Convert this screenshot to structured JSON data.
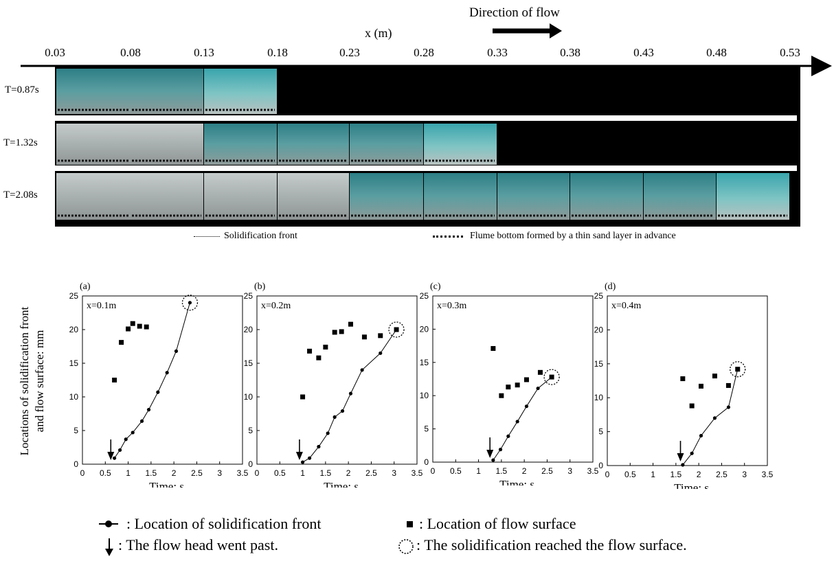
{
  "photo_figure": {
    "direction_label": "Direction of flow",
    "x_axis_label": "x (m)",
    "x_ticks": [
      "0.03",
      "0.08",
      "0.13",
      "0.18",
      "0.23",
      "0.28",
      "0.33",
      "0.38",
      "0.43",
      "0.48",
      "0.53"
    ],
    "rows": [
      {
        "label": "T=0.87s",
        "photos": 3
      },
      {
        "label": "T=1.32s",
        "photos": 6
      },
      {
        "label": "T=2.08s",
        "photos": 10
      }
    ],
    "legend": {
      "solidification_front": "Solidification front",
      "flume_bottom": "Flume bottom formed by a thin sand layer in advance"
    }
  },
  "y_axis_label": {
    "line1": "Locations of solidification front",
    "line2": "and flow surface: mm"
  },
  "chart_data": [
    {
      "type": "scatter",
      "panel": "(a)",
      "annotation": "x=0.1m",
      "xlabel": "Time: s",
      "xlim": [
        0,
        3.5
      ],
      "ylim": [
        0,
        25
      ],
      "xticks": [
        "0",
        "0.5",
        "1",
        "1.5",
        "2",
        "2.5",
        "3",
        "3.5"
      ],
      "yticks": [
        "0",
        "5",
        "10",
        "15",
        "20",
        "25"
      ],
      "series": [
        {
          "marker": "circle-line",
          "x": [
            0.7,
            0.82,
            0.95,
            1.1,
            1.3,
            1.45,
            1.65,
            1.85,
            2.05,
            2.35
          ],
          "y": [
            0.9,
            2.1,
            3.7,
            4.7,
            6.4,
            8.1,
            10.7,
            13.6,
            16.8,
            24
          ]
        },
        {
          "marker": "square",
          "x": [
            0.7,
            0.85,
            1.0,
            1.1,
            1.25,
            1.4
          ],
          "y": [
            12.5,
            18.1,
            20.1,
            20.9,
            20.5,
            20.4
          ]
        }
      ],
      "flow_head_time": 0.62,
      "reached_surface": [
        2.35,
        24
      ]
    },
    {
      "type": "scatter",
      "panel": "(b)",
      "annotation": "x=0.2m",
      "xlabel": "Time: s",
      "xlim": [
        0,
        3.5
      ],
      "ylim": [
        0,
        25
      ],
      "xticks": [
        "0",
        "0.5",
        "1",
        "1.5",
        "2",
        "2.5",
        "3",
        "3.5"
      ],
      "yticks": [
        "0",
        "5",
        "10",
        "15",
        "20",
        "25"
      ],
      "series": [
        {
          "marker": "circle-line",
          "x": [
            1.0,
            1.15,
            1.35,
            1.55,
            1.7,
            1.87,
            2.05,
            2.3,
            2.7,
            3.05
          ],
          "y": [
            0.3,
            0.9,
            2.6,
            4.6,
            7.0,
            7.9,
            10.5,
            14.0,
            16.5,
            20.0
          ]
        },
        {
          "marker": "square",
          "x": [
            1.0,
            1.15,
            1.35,
            1.5,
            1.7,
            1.85,
            2.05,
            2.35,
            2.7,
            3.05
          ],
          "y": [
            10.0,
            16.8,
            15.8,
            17.4,
            19.6,
            19.7,
            20.8,
            18.9,
            19.1,
            20.0
          ]
        }
      ],
      "flow_head_time": 0.93,
      "reached_surface": [
        3.05,
        20.0
      ]
    },
    {
      "type": "scatter",
      "panel": "(c)",
      "annotation": "x=0.3m",
      "xlabel": "Time: s",
      "xlim": [
        0,
        3.5
      ],
      "ylim": [
        0,
        25
      ],
      "xticks": [
        "0",
        "0.5",
        "1",
        "1.5",
        "2",
        "2.5",
        "3",
        "3.5"
      ],
      "yticks": [
        "0",
        "5",
        "10",
        "15",
        "20",
        "25"
      ],
      "series": [
        {
          "marker": "circle-line",
          "x": [
            1.32,
            1.48,
            1.65,
            1.85,
            2.05,
            2.3,
            2.6
          ],
          "y": [
            0.3,
            1.9,
            3.9,
            6.1,
            8.4,
            11.1,
            12.8
          ]
        },
        {
          "marker": "square",
          "x": [
            1.32,
            1.5,
            1.65,
            1.85,
            2.05,
            2.35,
            2.6
          ],
          "y": [
            17.1,
            10.0,
            11.3,
            11.6,
            12.4,
            13.5,
            12.8
          ]
        }
      ],
      "flow_head_time": 1.25,
      "reached_surface": [
        2.6,
        12.8
      ]
    },
    {
      "type": "scatter",
      "panel": "(d)",
      "annotation": "x=0.4m",
      "xlabel": "Time: s",
      "xlim": [
        0,
        3.5
      ],
      "ylim": [
        0,
        25
      ],
      "xticks": [
        "0",
        "0.5",
        "1",
        "1.5",
        "2",
        "2.5",
        "3",
        "3.5"
      ],
      "yticks": [
        "0",
        "5",
        "10",
        "15",
        "20",
        "25"
      ],
      "series": [
        {
          "marker": "circle-line",
          "x": [
            1.65,
            1.85,
            2.05,
            2.35,
            2.65,
            2.85
          ],
          "y": [
            0.1,
            1.8,
            4.4,
            7.0,
            8.6,
            14.2
          ]
        },
        {
          "marker": "square",
          "x": [
            1.65,
            1.85,
            2.05,
            2.35,
            2.65,
            2.85
          ],
          "y": [
            12.8,
            8.8,
            11.7,
            13.2,
            11.8,
            14.2
          ]
        }
      ],
      "flow_head_time": 1.6,
      "reached_surface": [
        2.85,
        14.2
      ]
    }
  ],
  "legend": {
    "front": ": Location of solidification front",
    "surface": ": Location of flow surface",
    "head": ": The flow head went past.",
    "reached": ": The solidification reached the flow surface."
  },
  "colors": {
    "photo_teal": "#5fb8bc",
    "photo_gray": "#9fa6a6",
    "photo_black": "#000000"
  }
}
